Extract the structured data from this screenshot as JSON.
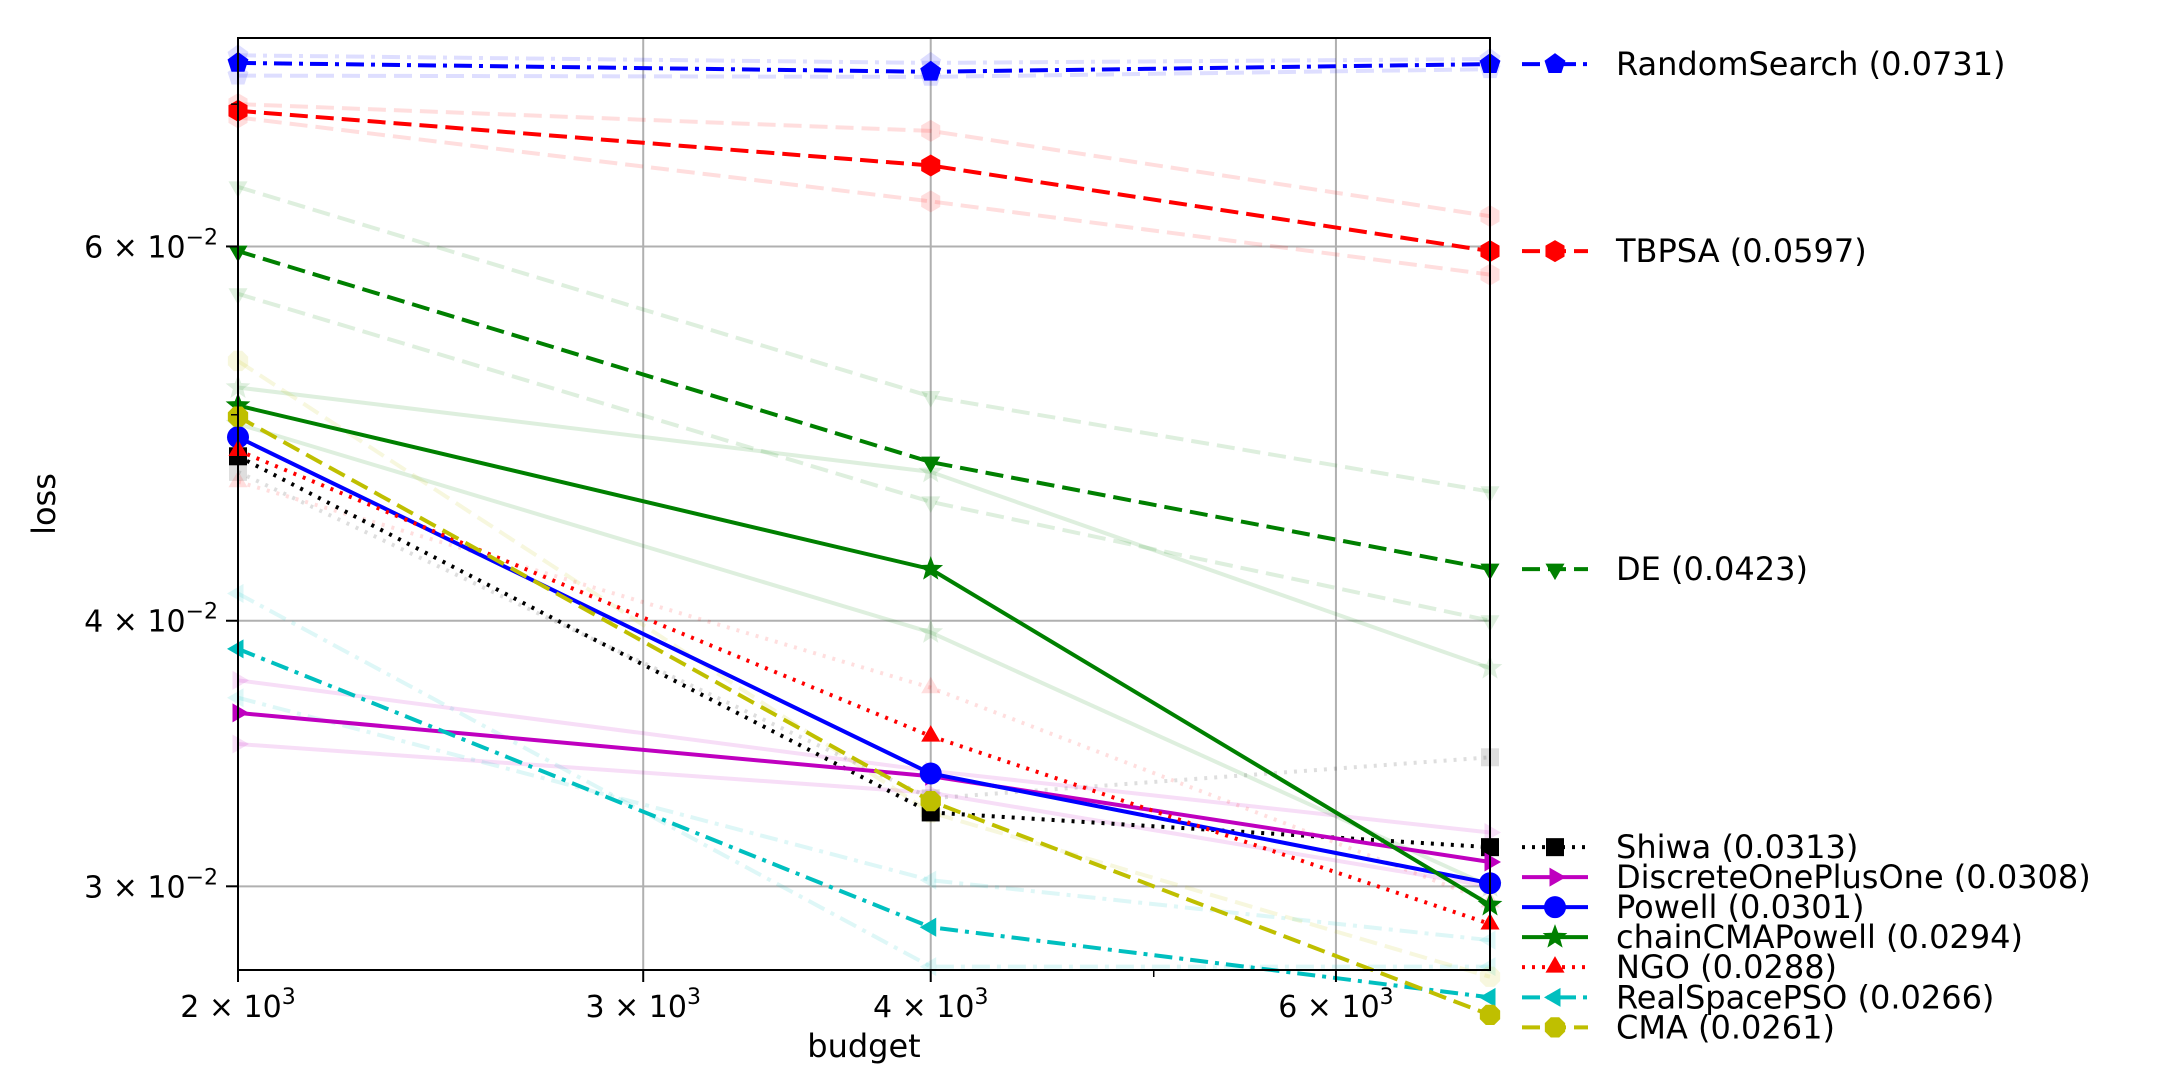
{
  "chart_data": {
    "type": "line",
    "xlabel": "budget",
    "ylabel": "loss",
    "xscale": "log",
    "yscale": "log",
    "xlim": [
      2000,
      7000
    ],
    "ylim": [
      0.0274,
      0.0752
    ],
    "grid": true,
    "legend_position": "right, outside plot",
    "x": [
      2000,
      4000,
      7000
    ],
    "x_major_ticks": [
      {
        "value": 2000,
        "base": "2 × 10",
        "exp": "3"
      },
      {
        "value": 3000,
        "base": "3 × 10",
        "exp": "3"
      },
      {
        "value": 4000,
        "base": "4 × 10",
        "exp": "3"
      },
      {
        "value": 6000,
        "base": "6 × 10",
        "exp": "3"
      }
    ],
    "x_minor_ticks": [
      5000
    ],
    "y_major_ticks": [
      {
        "value": 0.03,
        "base": "3 × 10",
        "exp": "−2"
      },
      {
        "value": 0.04,
        "base": "4 × 10",
        "exp": "−2"
      },
      {
        "value": 0.06,
        "base": "6 × 10",
        "exp": "−2"
      }
    ],
    "y_minor_ticks": [
      0.05,
      0.07
    ],
    "series": [
      {
        "name": "RandomSearch (0.0731)",
        "values": [
          0.0732,
          0.0725,
          0.0731
        ],
        "color": "#0000ff",
        "dash": "dashdot",
        "marker": "pentagon",
        "legend_value": 0.0731
      },
      {
        "name": "TBPSA (0.0597)",
        "values": [
          0.0695,
          0.0655,
          0.0597
        ],
        "color": "#ff0000",
        "dash": "dashed",
        "marker": "hexagon",
        "legend_value": 0.0597
      },
      {
        "name": "DE (0.0423)",
        "values": [
          0.0597,
          0.0475,
          0.0423
        ],
        "color": "#008000",
        "dash": "dashed",
        "marker": "triangle-down",
        "legend_value": 0.0423
      },
      {
        "name": "Shiwa (0.0313)",
        "values": [
          0.0478,
          0.0325,
          0.0313
        ],
        "color": "#000000",
        "dash": "dotted",
        "marker": "square",
        "legend_value": 0.0313
      },
      {
        "name": "DiscreteOnePlusOne (0.0308)",
        "values": [
          0.0362,
          0.0338,
          0.0308
        ],
        "color": "#bf00bf",
        "dash": "solid",
        "marker": "triangle-right",
        "legend_value": 0.0308
      },
      {
        "name": "Powell (0.0301)",
        "values": [
          0.0488,
          0.0339,
          0.0301
        ],
        "color": "#0000ff",
        "dash": "solid",
        "marker": "circle",
        "legend_value": 0.0301
      },
      {
        "name": "chainCMAPowell (0.0294)",
        "values": [
          0.0505,
          0.0423,
          0.0294
        ],
        "color": "#008000",
        "dash": "solid",
        "marker": "star",
        "legend_value": 0.0294
      },
      {
        "name": "NGO (0.0288)",
        "values": [
          0.0481,
          0.0353,
          0.0288
        ],
        "color": "#ff0000",
        "dash": "dotted",
        "marker": "triangle-up",
        "legend_value": 0.0288
      },
      {
        "name": "RealSpacePSO (0.0266)",
        "values": [
          0.0388,
          0.0287,
          0.0266
        ],
        "color": "#00bfbf",
        "dash": "dashdot",
        "marker": "triangle-left",
        "legend_value": 0.0266
      },
      {
        "name": "CMA (0.0261)",
        "values": [
          0.0499,
          0.0329,
          0.0261
        ],
        "color": "#bfbf00",
        "dash": "dashed",
        "marker": "octagon",
        "legend_value": 0.0261
      }
    ],
    "background_series": [
      {
        "color": "#0000ff",
        "dash": "dashdot",
        "marker": "pentagon",
        "values": [
          0.0738,
          0.0732,
          0.0735
        ]
      },
      {
        "color": "#0000ff",
        "dash": "dashed",
        "marker": "pentagon",
        "values": [
          0.0722,
          0.0721,
          0.0727
        ]
      },
      {
        "color": "#ff0000",
        "dash": "dashed",
        "marker": "hexagon",
        "values": [
          0.07,
          0.068,
          0.062
        ]
      },
      {
        "color": "#ff0000",
        "dash": "dashed",
        "marker": "hexagon",
        "values": [
          0.069,
          0.063,
          0.0582
        ]
      },
      {
        "color": "#008000",
        "dash": "dashed",
        "marker": "triangle-down",
        "values": [
          0.064,
          0.051,
          0.046
        ]
      },
      {
        "color": "#008000",
        "dash": "dashed",
        "marker": "triangle-down",
        "values": [
          0.057,
          0.0455,
          0.04
        ]
      },
      {
        "color": "#008000",
        "dash": "solid",
        "marker": "star",
        "values": [
          0.0515,
          0.047,
          0.038
        ]
      },
      {
        "color": "#008000",
        "dash": "solid",
        "marker": "star",
        "values": [
          0.0495,
          0.0395,
          0.03
        ]
      },
      {
        "color": "#000000",
        "dash": "dotted",
        "marker": "square",
        "values": [
          0.047,
          0.033,
          0.0345
        ]
      },
      {
        "color": "#bf00bf",
        "dash": "solid",
        "marker": "triangle-right",
        "values": [
          0.0375,
          0.034,
          0.0318
        ]
      },
      {
        "color": "#bf00bf",
        "dash": "solid",
        "marker": "triangle-right",
        "values": [
          0.035,
          0.0332,
          0.03
        ]
      },
      {
        "color": "#ff0000",
        "dash": "dotted",
        "marker": "triangle-up",
        "values": [
          0.0465,
          0.0372,
          0.0295
        ]
      },
      {
        "color": "#00bfbf",
        "dash": "dashdot",
        "marker": "triangle-left",
        "values": [
          0.0412,
          0.0275,
          0.0275
        ]
      },
      {
        "color": "#00bfbf",
        "dash": "dashdot",
        "marker": "triangle-left",
        "values": [
          0.0368,
          0.0302,
          0.0283
        ]
      },
      {
        "color": "#bfbf00",
        "dash": "dashed",
        "marker": "octagon",
        "values": [
          0.053,
          0.0325,
          0.0272
        ]
      }
    ]
  }
}
